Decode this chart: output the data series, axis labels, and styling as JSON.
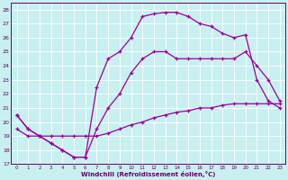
{
  "xlabel": "Windchill (Refroidissement éolien,°C)",
  "bg_color": "#c8f0f0",
  "line_color": "#990099",
  "text_color": "#660066",
  "grid_color": "#ffffff",
  "xlim_min": -0.5,
  "xlim_max": 23.5,
  "ylim_min": 17,
  "ylim_max": 28.5,
  "xtick_vals": [
    0,
    1,
    2,
    3,
    4,
    5,
    6,
    7,
    8,
    9,
    10,
    11,
    12,
    13,
    14,
    15,
    16,
    17,
    18,
    19,
    20,
    21,
    22,
    23
  ],
  "ytick_vals": [
    17,
    18,
    19,
    20,
    21,
    22,
    23,
    24,
    25,
    26,
    27,
    28
  ],
  "hours": [
    0,
    1,
    2,
    3,
    4,
    5,
    6,
    7,
    8,
    9,
    10,
    11,
    12,
    13,
    14,
    15,
    16,
    17,
    18,
    19,
    20,
    21,
    22,
    23
  ],
  "upper_y": [
    20.5,
    19.5,
    19.0,
    18.5,
    18.0,
    17.5,
    17.5,
    22.5,
    24.5,
    25.0,
    26.0,
    27.5,
    27.7,
    27.8,
    27.8,
    27.5,
    27.0,
    26.8,
    26.3,
    26.0,
    26.2,
    23.0,
    21.5,
    21.0
  ],
  "mid_y": [
    20.5,
    19.5,
    19.0,
    18.5,
    18.0,
    17.5,
    17.5,
    19.5,
    21.0,
    22.0,
    23.5,
    24.5,
    25.0,
    25.0,
    24.5,
    24.5,
    24.5,
    24.5,
    24.5,
    24.5,
    25.0,
    24.0,
    23.0,
    21.5
  ],
  "lower_y": [
    19.5,
    19.0,
    19.0,
    19.0,
    19.0,
    19.0,
    19.0,
    19.0,
    19.2,
    19.5,
    19.8,
    20.0,
    20.3,
    20.5,
    20.7,
    20.8,
    21.0,
    21.0,
    21.2,
    21.3,
    21.3,
    21.3,
    21.3,
    21.3
  ]
}
